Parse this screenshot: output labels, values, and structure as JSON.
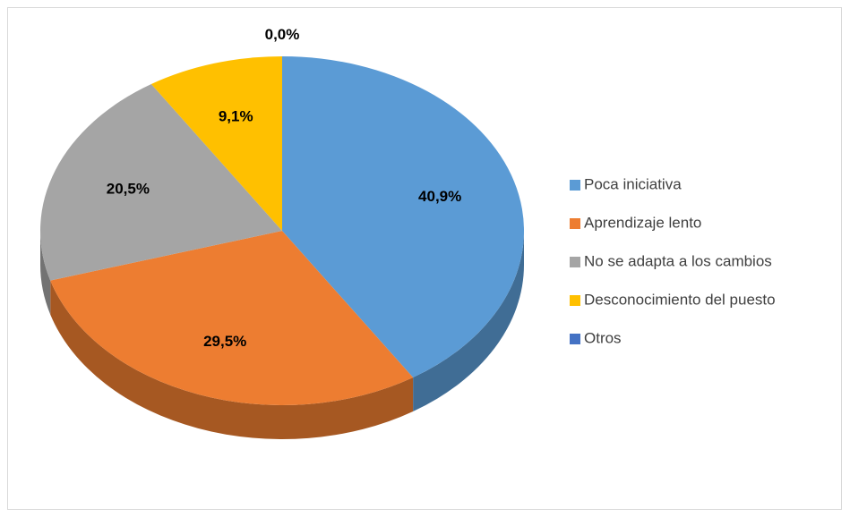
{
  "chart_data": {
    "type": "pie",
    "categories": [
      "Poca iniciativa",
      "Aprendizaje lento",
      "No se adapta a los cambios",
      "Desconocimiento del puesto",
      "Otros"
    ],
    "values": [
      40.9,
      29.5,
      20.5,
      9.1,
      0.0
    ],
    "value_labels": [
      "40,9%",
      "29,5%",
      "20,5%",
      "9,1%",
      "0,0%"
    ],
    "colors": [
      "#5b9bd5",
      "#ed7d31",
      "#a5a5a5",
      "#ffc000",
      "#4472c4"
    ],
    "legend": "right"
  }
}
